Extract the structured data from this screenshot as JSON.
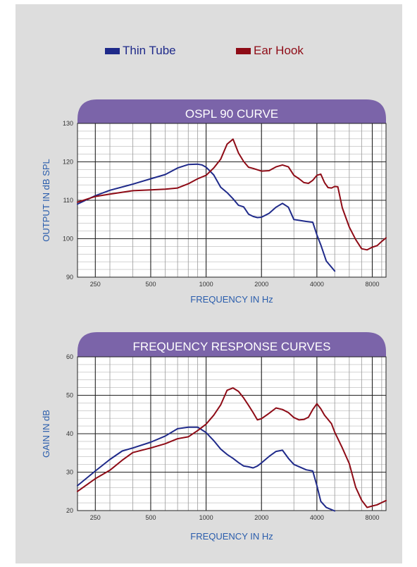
{
  "colors": {
    "thin_tube": "#1f2a8a",
    "ear_hook": "#8e0b16",
    "banner": "#7b64a9",
    "axis_text": "#2a5dac",
    "background": "#dddddd"
  },
  "legend": {
    "items": [
      {
        "label": "Thin Tube",
        "color": "#1f2a8a"
      },
      {
        "label": "Ear Hook",
        "color": "#8e0b16"
      }
    ]
  },
  "chart_data": [
    {
      "type": "line",
      "title": "OSPL 90 CURVE",
      "xlabel": "FREQUENCY IN Hz",
      "ylabel": "OUTPUT IN dB SPL",
      "x_scale": "log",
      "xlim": [
        200,
        9500
      ],
      "ylim": [
        90,
        130
      ],
      "x_ticks": [
        250,
        500,
        1000,
        2000,
        4000,
        8000
      ],
      "y_ticks": [
        90,
        100,
        110,
        120,
        130
      ],
      "grid": true,
      "series": [
        {
          "name": "Thin Tube",
          "color": "#1f2a8a",
          "x": [
            200,
            250,
            300,
            400,
            500,
            600,
            700,
            800,
            900,
            950,
            1000,
            1100,
            1200,
            1300,
            1400,
            1500,
            1600,
            1700,
            1800,
            1900,
            2000,
            2200,
            2400,
            2600,
            2800,
            3000,
            3500,
            3800,
            4000,
            4200,
            4500,
            5000
          ],
          "y": [
            109,
            111.2,
            112.6,
            114.2,
            115.6,
            116.7,
            118.4,
            119.3,
            119.4,
            119.2,
            118.6,
            116.6,
            113.4,
            112,
            110.4,
            108.7,
            108.3,
            106.4,
            105.8,
            105.5,
            105.6,
            106.6,
            108.2,
            109.2,
            108.2,
            105,
            104.5,
            104.3,
            101,
            98.4,
            94.2,
            91.6
          ]
        },
        {
          "name": "Ear Hook",
          "color": "#8e0b16",
          "x": [
            200,
            250,
            300,
            400,
            500,
            600,
            700,
            800,
            900,
            1000,
            1100,
            1200,
            1300,
            1400,
            1500,
            1600,
            1700,
            1800,
            2000,
            2200,
            2400,
            2600,
            2800,
            3000,
            3200,
            3400,
            3600,
            3800,
            4000,
            4200,
            4400,
            4600,
            4800,
            5000,
            5200,
            5500,
            6000,
            6500,
            7000,
            7500,
            8000,
            8500,
            9000,
            9500
          ],
          "y": [
            109.5,
            111,
            111.6,
            112.5,
            112.7,
            112.9,
            113.2,
            114.3,
            115.6,
            116.5,
            118.4,
            120.7,
            124.6,
            125.9,
            122.3,
            120.1,
            118.6,
            118.3,
            117.6,
            117.7,
            118.7,
            119.2,
            118.7,
            116.5,
            115.6,
            114.6,
            114.4,
            115.2,
            116.5,
            116.8,
            114.6,
            113.3,
            113.2,
            113.6,
            113.5,
            108,
            103,
            99.8,
            97.4,
            97.1,
            97.8,
            98.2,
            99.3,
            100.2
          ]
        }
      ]
    },
    {
      "type": "line",
      "title": "FREQUENCY RESPONSE CURVES",
      "xlabel": "FREQUENCY IN Hz",
      "ylabel": "GAIN IN dB",
      "x_scale": "log",
      "xlim": [
        200,
        9500
      ],
      "ylim": [
        20,
        60
      ],
      "x_ticks": [
        250,
        500,
        1000,
        2000,
        4000,
        8000
      ],
      "y_ticks": [
        20,
        30,
        40,
        50,
        60
      ],
      "grid": true,
      "series": [
        {
          "name": "Thin Tube",
          "color": "#1f2a8a",
          "x": [
            200,
            250,
            300,
            350,
            400,
            500,
            600,
            700,
            800,
            900,
            1000,
            1100,
            1200,
            1300,
            1400,
            1500,
            1600,
            1700,
            1800,
            1900,
            2000,
            2200,
            2400,
            2600,
            2800,
            3000,
            3500,
            3800,
            4000,
            4200,
            4500,
            5000
          ],
          "y": [
            26.5,
            30.3,
            33.3,
            35.5,
            36.3,
            37.8,
            39.4,
            41.3,
            41.7,
            41.7,
            40.3,
            38.2,
            36,
            34.6,
            33.6,
            32.5,
            31.6,
            31.4,
            31.1,
            31.6,
            32.4,
            34.1,
            35.4,
            35.7,
            33.6,
            32,
            30.6,
            30.3,
            26.5,
            22.4,
            20.8,
            19.9
          ]
        },
        {
          "name": "Ear Hook",
          "color": "#8e0b16",
          "x": [
            200,
            250,
            300,
            350,
            400,
            500,
            600,
            700,
            800,
            900,
            1000,
            1100,
            1200,
            1300,
            1400,
            1500,
            1600,
            1700,
            1800,
            1900,
            2000,
            2200,
            2400,
            2600,
            2800,
            3000,
            3200,
            3400,
            3600,
            3800,
            4000,
            4200,
            4400,
            4800,
            5000,
            5500,
            6000,
            6500,
            7000,
            7500,
            8000,
            8500,
            9000,
            9500
          ],
          "y": [
            25,
            28.3,
            30.5,
            33.1,
            35.1,
            36.3,
            37.4,
            38.7,
            39.2,
            40.8,
            42.5,
            44.8,
            47.5,
            51.3,
            51.9,
            51,
            49.3,
            47.4,
            45.5,
            43.6,
            43.9,
            45.3,
            46.7,
            46.3,
            45.5,
            44.2,
            43.6,
            43.7,
            44.3,
            46.3,
            47.8,
            46.5,
            44.8,
            42.6,
            40.4,
            36.3,
            32.2,
            26.1,
            22.7,
            20.8,
            21.2,
            21.5,
            22.1,
            22.6
          ]
        }
      ]
    }
  ]
}
